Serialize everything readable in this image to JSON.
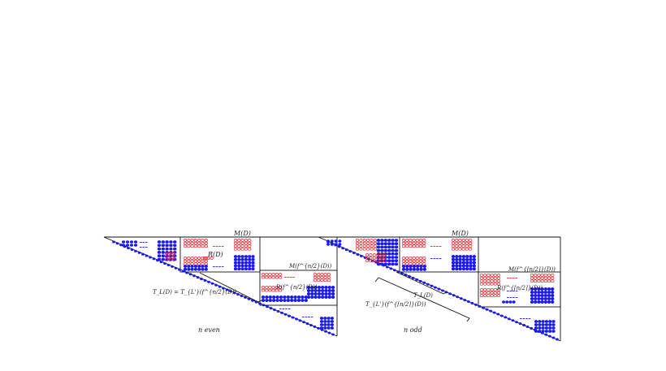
{
  "left_panel": {
    "label_M": "M(D)",
    "label_R": "R(D)",
    "label_M_half": "M(f^{n/2}(D))",
    "label_R_half": "R(f^{n/2}(D))",
    "label_T": "T_L(D) = T_{L'}(f^{n/2}(D))",
    "caption": "n even"
  },
  "right_panel": {
    "label_M": "M(D)",
    "label_M_half": "M(f^{⌈n/2⌉}(D))",
    "label_R_half": "R(f^{⌈n/2⌉}(D))",
    "label_T1": "T_L(D)",
    "label_T2": "T_{L'}(f^{⌈n/2⌉}(D))",
    "caption": "n odd"
  },
  "colors": {
    "blue": "#1a1aee",
    "red": "#e8222a",
    "line": "#111111"
  }
}
